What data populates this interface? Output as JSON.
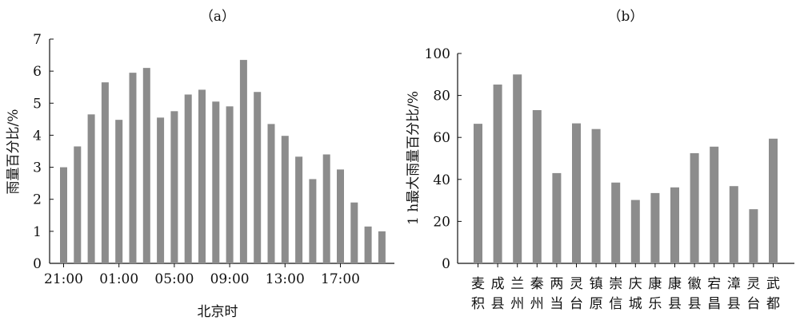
{
  "colors": {
    "bar": "#8c8c8c",
    "axis": "#111111"
  },
  "chart_data": [
    {
      "type": "bar",
      "title": "（a）",
      "xlabel": "北京时",
      "ylabel": "雨量百分比/%",
      "ylim": [
        0,
        7
      ],
      "yticks": [
        "0",
        "1",
        "2",
        "3",
        "4",
        "5",
        "6",
        "7"
      ],
      "xticks": [
        {
          "label": "21:00",
          "index": 0
        },
        {
          "label": "01:00",
          "index": 4
        },
        {
          "label": "05:00",
          "index": 8
        },
        {
          "label": "09:00",
          "index": 12
        },
        {
          "label": "13:00",
          "index": 16
        },
        {
          "label": "17:00",
          "index": 20
        }
      ],
      "values": [
        3.0,
        3.65,
        4.65,
        5.65,
        4.48,
        5.95,
        6.1,
        4.55,
        4.75,
        5.27,
        5.42,
        5.05,
        4.9,
        6.35,
        5.35,
        4.35,
        3.98,
        3.33,
        2.63,
        3.4,
        2.93,
        1.9,
        1.15,
        1.0
      ],
      "grid": false
    },
    {
      "type": "bar",
      "title": "（b）",
      "xlabel": "",
      "ylabel": "1 h最大雨量百分比/%",
      "ylim": [
        0,
        100
      ],
      "yticks": [
        "0",
        "20",
        "40",
        "60",
        "80",
        "100"
      ],
      "categories": [
        [
          "麦",
          "积"
        ],
        [
          "成",
          "县"
        ],
        [
          "兰",
          "州"
        ],
        [
          "秦",
          "州"
        ],
        [
          "两",
          "当"
        ],
        [
          "灵",
          "台"
        ],
        [
          "镇",
          "原"
        ],
        [
          "崇",
          "信"
        ],
        [
          "庆",
          "城"
        ],
        [
          "康",
          "乐"
        ],
        [
          "康",
          "县"
        ],
        [
          "徽",
          "县"
        ],
        [
          "宕",
          "昌"
        ],
        [
          "漳",
          "县"
        ],
        [
          "灵",
          "台"
        ],
        [
          "武",
          "都"
        ]
      ],
      "values": [
        66.5,
        85.2,
        90.0,
        73.0,
        43.0,
        66.7,
        64.0,
        38.5,
        30.2,
        33.5,
        36.2,
        52.5,
        55.6,
        36.8,
        25.8,
        59.4
      ],
      "grid": false
    }
  ]
}
